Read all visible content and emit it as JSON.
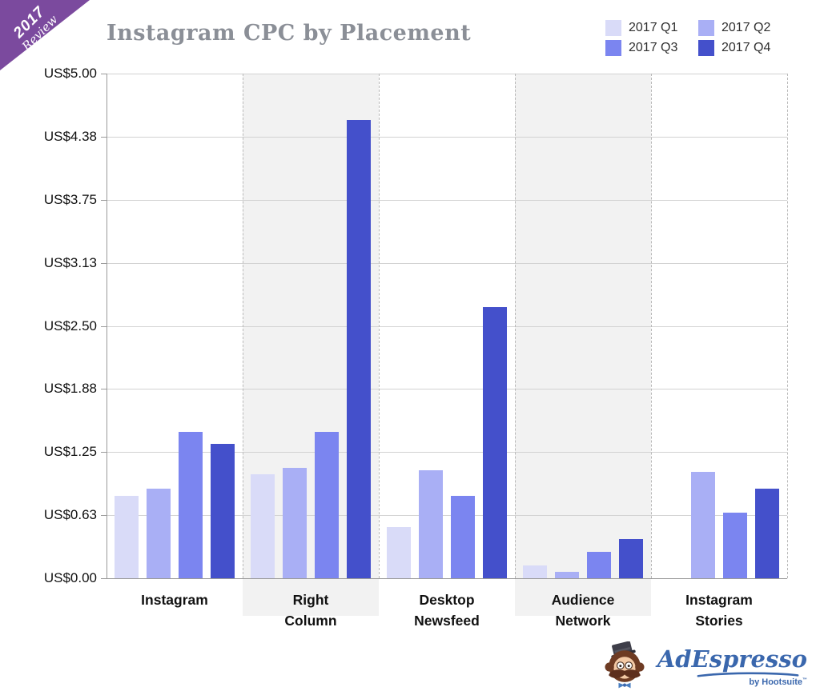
{
  "ribbon": {
    "line1": "2017",
    "line2": "Review",
    "color": "#7b4a9e"
  },
  "title": {
    "text": "Instagram CPC by Placement",
    "color": "#8b8f97"
  },
  "legend": {
    "items": [
      {
        "label": "2017 Q1",
        "color": "#d9dbf8"
      },
      {
        "label": "2017 Q2",
        "color": "#a9aff5"
      },
      {
        "label": "2017 Q3",
        "color": "#7b85f0"
      },
      {
        "label": "2017 Q4",
        "color": "#4450cb"
      }
    ]
  },
  "chart_data": {
    "type": "bar",
    "title": "Instagram CPC by Placement",
    "categories": [
      "Instagram",
      "Right Column",
      "Desktop Newsfeed",
      "Audience Network",
      "Instagram Stories"
    ],
    "series": [
      {
        "name": "2017 Q1",
        "color": "#d9dbf8",
        "values": [
          0.82,
          1.03,
          0.51,
          0.13,
          null
        ]
      },
      {
        "name": "2017 Q2",
        "color": "#a9aff5",
        "values": [
          0.89,
          1.09,
          1.07,
          0.06,
          1.05
        ]
      },
      {
        "name": "2017 Q3",
        "color": "#7b85f0",
        "values": [
          1.45,
          1.45,
          0.82,
          0.26,
          0.65
        ]
      },
      {
        "name": "2017 Q4",
        "color": "#4450cb",
        "values": [
          1.33,
          4.54,
          2.69,
          0.39,
          0.89
        ]
      }
    ],
    "currency_prefix": "US$",
    "ylim": [
      0,
      5
    ],
    "ytick_step": 0.625,
    "ytick_labels": [
      "US$0.00",
      "US$0.63",
      "US$1.25",
      "US$1.88",
      "US$2.50",
      "US$3.13",
      "US$3.75",
      "US$4.38",
      "US$5.00"
    ],
    "grid": true,
    "legend_position": "top-right",
    "shaded_categories": [
      1,
      3
    ]
  },
  "logo": {
    "name": "AdEspresso",
    "byline": "by Hootsuite",
    "trademark": "™",
    "color": "#3a67ad"
  }
}
